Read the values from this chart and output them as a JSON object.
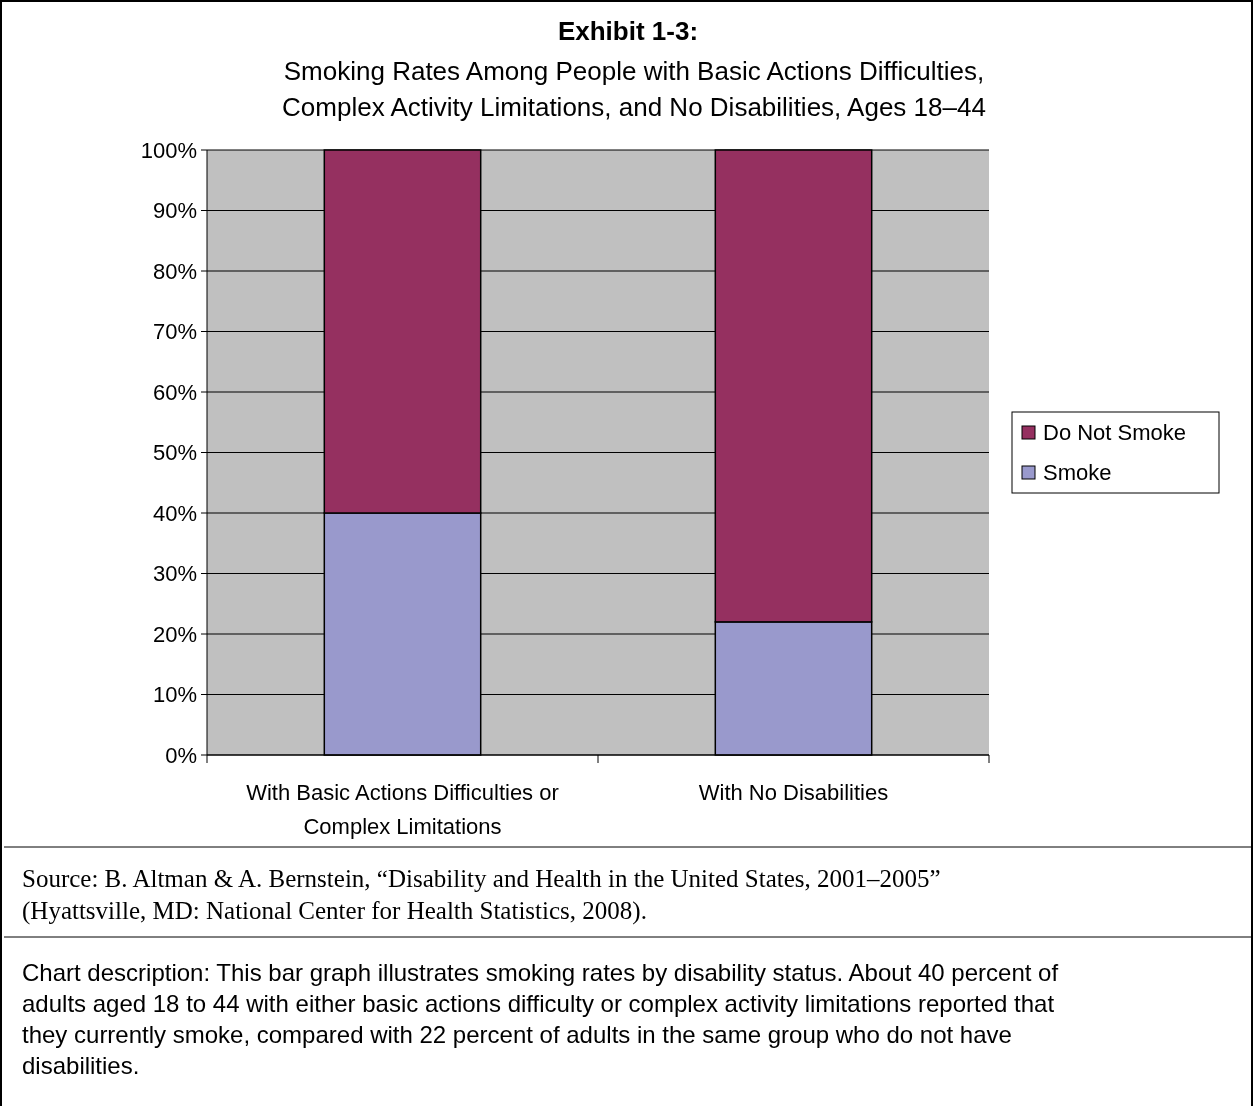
{
  "chart_data": {
    "type": "bar",
    "title": "Exhibit 1-3:",
    "subtitle": "Smoking Rates Among People with Basic Actions Difficulties, Complex Activity Limitations, and No Disabilities, Ages 18–44",
    "categories": [
      "With Basic Actions Difficulties or Complex Limitations",
      "With No Disabilities"
    ],
    "series": [
      {
        "name": "Smoke",
        "color": "#9999cc",
        "values": [
          40,
          22
        ]
      },
      {
        "name": "Do Not Smoke",
        "color": "#953060",
        "values": [
          60,
          78
        ]
      }
    ],
    "stacked": true,
    "ylim": [
      0,
      100
    ],
    "yticks": [
      {
        "value": 0,
        "label": "0%"
      },
      {
        "value": 10,
        "label": "10%"
      },
      {
        "value": 20,
        "label": "20%"
      },
      {
        "value": 30,
        "label": "30%"
      },
      {
        "value": 40,
        "label": "40%"
      },
      {
        "value": 50,
        "label": "50%"
      },
      {
        "value": 60,
        "label": "60%"
      },
      {
        "value": 70,
        "label": "70%"
      },
      {
        "value": 80,
        "label": "80%"
      },
      {
        "value": 90,
        "label": "90%"
      },
      {
        "value": 100,
        "label": "100%"
      }
    ],
    "grid": "y",
    "legend": "right",
    "annotations": [
      "Source: B. Altman & A. Bernstein, “Disability and Health in the United States, 2001–2005” (Hyattsville, MD: National Center for Health Statistics, 2008).",
      "Chart description: This bar graph illustrates smoking rates by disability status. About 40 percent of adults aged 18 to 44 with either basic actions difficulty or complex activity limitations reported that they currently smoke, compared with 22 percent of adults in the same group who do not have disabilities."
    ]
  }
}
